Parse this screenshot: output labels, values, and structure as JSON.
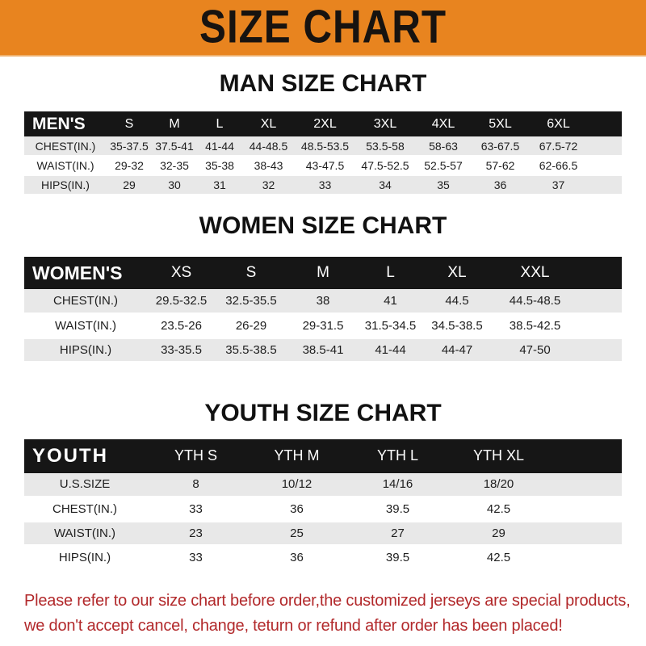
{
  "banner": {
    "title": "SIZE CHART",
    "bg_color": "#E8841F",
    "text_color": "#171310"
  },
  "colors": {
    "table_header_bg": "#161616",
    "table_header_text": "#FFFFFF",
    "row_shade": "#E8E8E8",
    "disclaimer_red": "#B2292B"
  },
  "sections": [
    {
      "id": "men",
      "title": "MAN SIZE CHART",
      "table": {
        "header_label": "MEN'S",
        "columns": [
          "S",
          "M",
          "L",
          "XL",
          "2XL",
          "3XL",
          "4XL",
          "5XL",
          "6XL"
        ],
        "rows": [
          {
            "label": "CHEST(IN.)",
            "values": [
              "35-37.5",
              "37.5-41",
              "41-44",
              "44-48.5",
              "48.5-53.5",
              "53.5-58",
              "58-63",
              "63-67.5",
              "67.5-72"
            ]
          },
          {
            "label": "WAIST(IN.)",
            "values": [
              "29-32",
              "32-35",
              "35-38",
              "38-43",
              "43-47.5",
              "47.5-52.5",
              "52.5-57",
              "57-62",
              "62-66.5"
            ]
          },
          {
            "label": "HIPS(IN.)",
            "values": [
              "29",
              "30",
              "31",
              "32",
              "33",
              "34",
              "35",
              "36",
              "37"
            ]
          }
        ]
      }
    },
    {
      "id": "women",
      "title": "WOMEN SIZE CHART",
      "table": {
        "header_label": "WOMEN'S",
        "columns": [
          "XS",
          "S",
          "M",
          "L",
          "XL",
          "XXL"
        ],
        "rows": [
          {
            "label": "CHEST(IN.)",
            "values": [
              "29.5-32.5",
              "32.5-35.5",
              "38",
              "41",
              "44.5",
              "44.5-48.5"
            ]
          },
          {
            "label": "WAIST(IN.)",
            "values": [
              "23.5-26",
              "26-29",
              "29-31.5",
              "31.5-34.5",
              "34.5-38.5",
              "38.5-42.5"
            ]
          },
          {
            "label": "HIPS(IN.)",
            "values": [
              "33-35.5",
              "35.5-38.5",
              "38.5-41",
              "41-44",
              "44-47",
              "47-50"
            ]
          }
        ]
      }
    },
    {
      "id": "youth",
      "title": "YOUTH SIZE CHART",
      "table": {
        "header_label": "YOUTH",
        "columns": [
          "YTH S",
          "YTH M",
          "YTH L",
          "YTH XL"
        ],
        "rows": [
          {
            "label": "U.S.SIZE",
            "values": [
              "8",
              "10/12",
              "14/16",
              "18/20"
            ]
          },
          {
            "label": "CHEST(IN.)",
            "values": [
              "33",
              "36",
              "39.5",
              "42.5"
            ]
          },
          {
            "label": "WAIST(IN.)",
            "values": [
              "23",
              "25",
              "27",
              "29"
            ]
          },
          {
            "label": "HIPS(IN.)",
            "values": [
              "33",
              "36",
              "39.5",
              "42.5"
            ]
          }
        ]
      }
    }
  ],
  "disclaimer": {
    "line1": "Please refer to our size chart before order,the customized jerseys are special products,",
    "line2": "we don't accept cancel, change, teturn or refund after order has been placed!"
  },
  "chart_data": [
    {
      "type": "table",
      "title": "MAN SIZE CHART",
      "columns": [
        "MEN'S",
        "S",
        "M",
        "L",
        "XL",
        "2XL",
        "3XL",
        "4XL",
        "5XL",
        "6XL"
      ],
      "rows": [
        [
          "CHEST(IN.)",
          "35-37.5",
          "37.5-41",
          "41-44",
          "44-48.5",
          "48.5-53.5",
          "53.5-58",
          "58-63",
          "63-67.5",
          "67.5-72"
        ],
        [
          "WAIST(IN.)",
          "29-32",
          "32-35",
          "35-38",
          "38-43",
          "43-47.5",
          "47.5-52.5",
          "52.5-57",
          "57-62",
          "62-66.5"
        ],
        [
          "HIPS(IN.)",
          "29",
          "30",
          "31",
          "32",
          "33",
          "34",
          "35",
          "36",
          "37"
        ]
      ]
    },
    {
      "type": "table",
      "title": "WOMEN SIZE CHART",
      "columns": [
        "WOMEN'S",
        "XS",
        "S",
        "M",
        "L",
        "XL",
        "XXL"
      ],
      "rows": [
        [
          "CHEST(IN.)",
          "29.5-32.5",
          "32.5-35.5",
          "38",
          "41",
          "44.5",
          "44.5-48.5"
        ],
        [
          "WAIST(IN.)",
          "23.5-26",
          "26-29",
          "29-31.5",
          "31.5-34.5",
          "34.5-38.5",
          "38.5-42.5"
        ],
        [
          "HIPS(IN.)",
          "33-35.5",
          "35.5-38.5",
          "38.5-41",
          "41-44",
          "44-47",
          "47-50"
        ]
      ]
    },
    {
      "type": "table",
      "title": "YOUTH SIZE CHART",
      "columns": [
        "YOUTH",
        "YTH S",
        "YTH M",
        "YTH L",
        "YTH XL"
      ],
      "rows": [
        [
          "U.S.SIZE",
          "8",
          "10/12",
          "14/16",
          "18/20"
        ],
        [
          "CHEST(IN.)",
          "33",
          "36",
          "39.5",
          "42.5"
        ],
        [
          "WAIST(IN.)",
          "23",
          "25",
          "27",
          "29"
        ],
        [
          "HIPS(IN.)",
          "33",
          "36",
          "39.5",
          "42.5"
        ]
      ]
    }
  ]
}
